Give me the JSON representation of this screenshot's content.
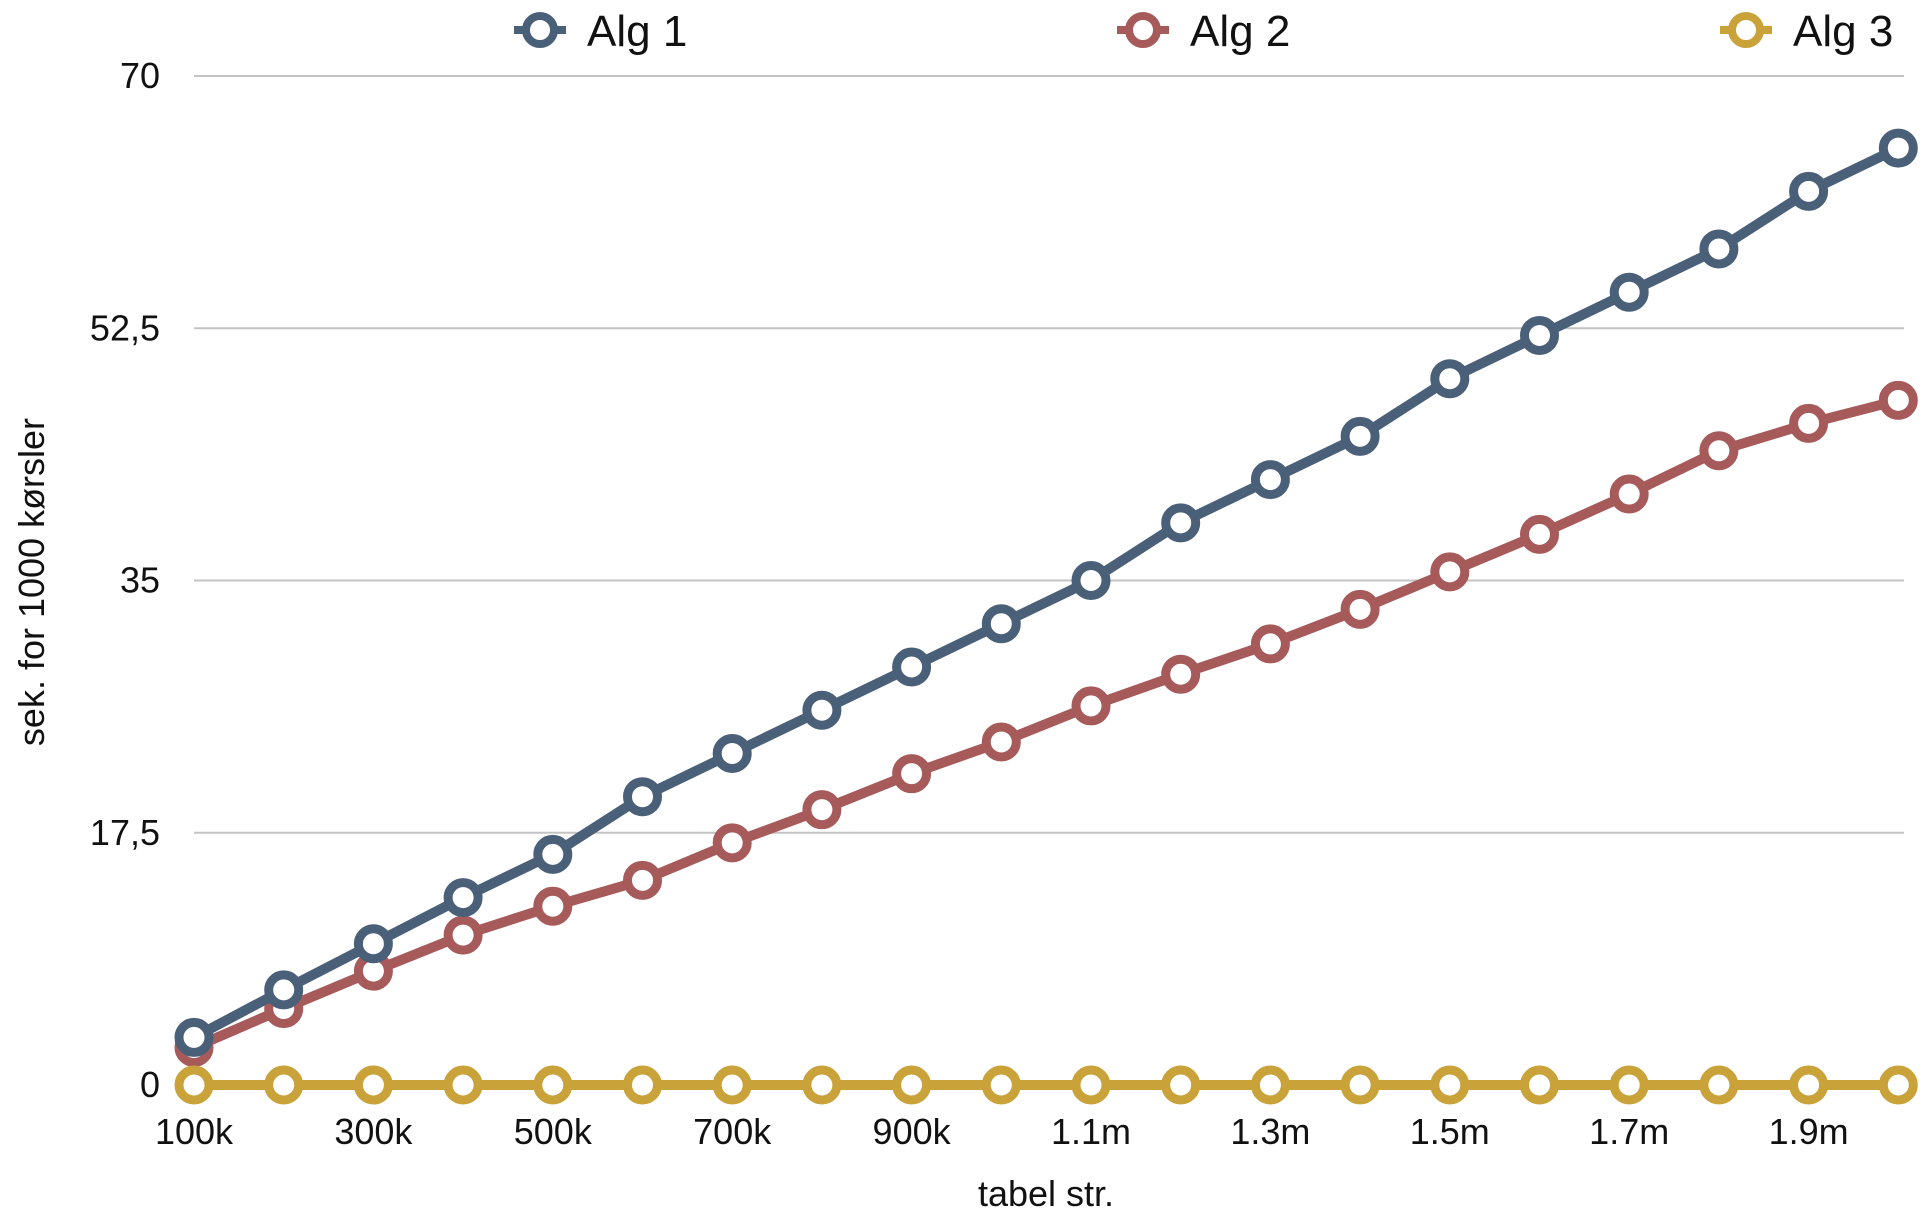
{
  "chart_data": {
    "type": "line",
    "title": "",
    "xlabel": "tabel str.",
    "ylabel": "sek. for 1000 kørsler",
    "x": [
      "100k",
      "200k",
      "300k",
      "400k",
      "500k",
      "600k",
      "700k",
      "800k",
      "900k",
      "1m",
      "1.1m",
      "1.2m",
      "1.3m",
      "1.4m",
      "1.5m",
      "1.6m",
      "1.7m",
      "1.8m",
      "1.9m",
      "2m"
    ],
    "x_tick_labels": [
      "100k",
      "300k",
      "500k",
      "700k",
      "900k",
      "1.1m",
      "1.3m",
      "1.5m",
      "1.7m",
      "1.9m"
    ],
    "ylim": [
      0,
      70
    ],
    "y_ticks": [
      0,
      17.5,
      35,
      52.5,
      70
    ],
    "y_tick_labels": [
      "0",
      "17,5",
      "35",
      "52,5",
      "70"
    ],
    "grid": true,
    "legend_position": "top",
    "series": [
      {
        "name": "Alg 1",
        "color": "#4a6079",
        "values": [
          3.3,
          6.6,
          9.8,
          13.0,
          16.0,
          20.0,
          23.0,
          26.0,
          29.0,
          32.0,
          35.0,
          39.0,
          42.0,
          45.0,
          49.0,
          52.0,
          55.0,
          58.0,
          62.0,
          65.0
        ]
      },
      {
        "name": "Alg 2",
        "color": "#a75a5a",
        "values": [
          2.6,
          5.3,
          7.9,
          10.4,
          12.4,
          14.2,
          16.8,
          19.1,
          21.6,
          23.8,
          26.3,
          28.5,
          30.6,
          33.0,
          35.6,
          38.2,
          41.0,
          44.0,
          45.9,
          47.5
        ]
      },
      {
        "name": "Alg 3",
        "color": "#c9a23a",
        "values": [
          0,
          0,
          0,
          0,
          0,
          0,
          0,
          0,
          0,
          0,
          0,
          0,
          0,
          0,
          0,
          0,
          0,
          0,
          0,
          0
        ]
      }
    ]
  }
}
